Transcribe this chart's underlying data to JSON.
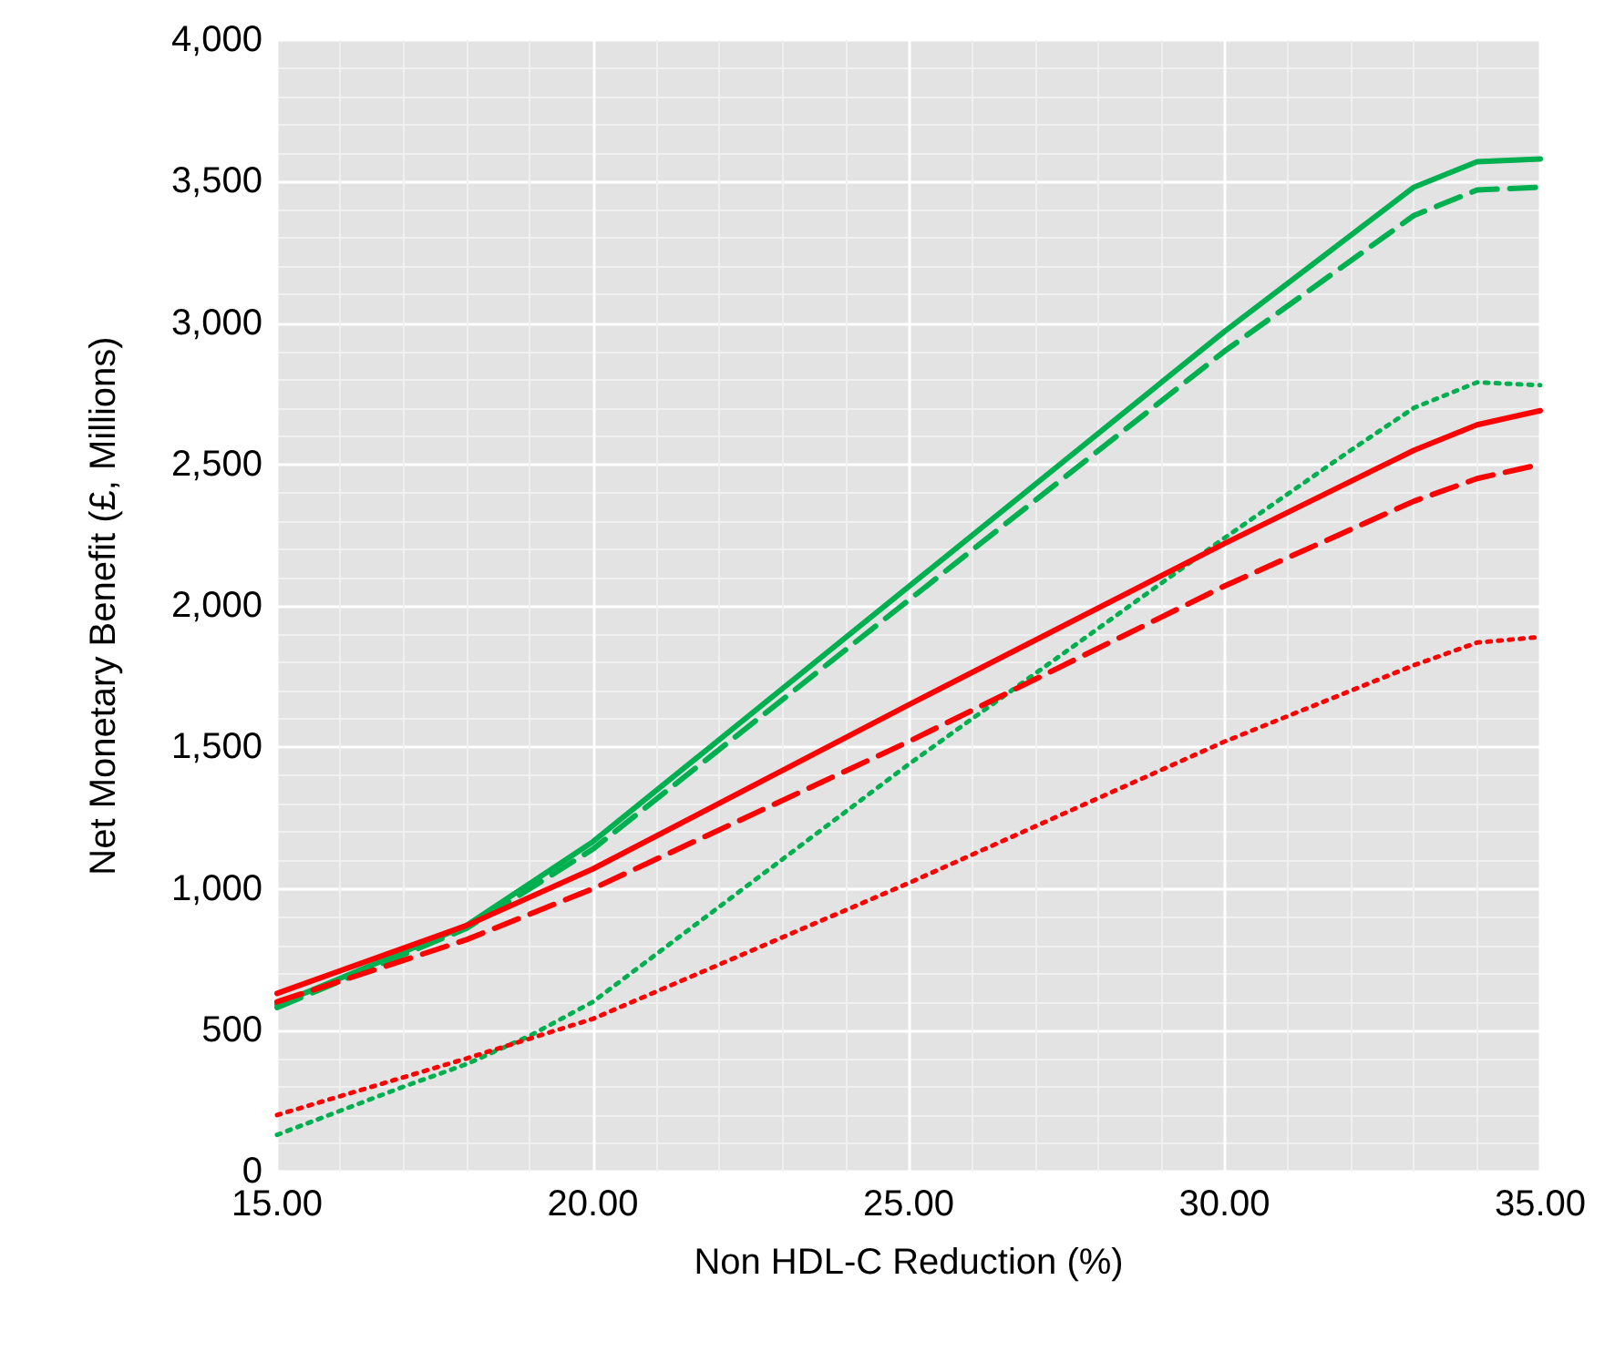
{
  "chart_data": {
    "type": "line",
    "xlabel": "Non HDL-C Reduction (%)",
    "ylabel": "Net Monetary Benefit (£, Millions)",
    "xlim": [
      15,
      35
    ],
    "xticks": [
      {
        "value": 15,
        "label": "15.00"
      },
      {
        "value": 20,
        "label": "20.00"
      },
      {
        "value": 25,
        "label": "25.00"
      },
      {
        "value": 30,
        "label": "30.00"
      },
      {
        "value": 35,
        "label": "35.00"
      }
    ],
    "ylim": [
      0,
      4000
    ],
    "yticks": [
      0,
      500,
      {
        "value": 1000,
        "label": "1,000"
      },
      {
        "value": 1500,
        "label": "1,500"
      },
      {
        "value": 2000,
        "label": "2,000"
      },
      {
        "value": 2500,
        "label": "2,500"
      },
      {
        "value": 3000,
        "label": "3,000"
      },
      {
        "value": 3500,
        "label": "3,500"
      },
      {
        "value": 4000,
        "label": "4,000"
      }
    ],
    "grid": true,
    "marker": "none",
    "x": [
      15,
      18,
      20,
      25,
      30,
      33,
      34,
      35
    ],
    "series": [
      {
        "color": "#00b050",
        "line_style": "solid",
        "values": [
          590,
          870,
          1166,
          2068,
          2970,
          3480,
          3570,
          3580
        ]
      },
      {
        "color": "#00b050",
        "line_style": "dashed",
        "values": [
          580,
          860,
          1140,
          2020,
          2900,
          3380,
          3470,
          3480
        ]
      },
      {
        "color": "#00b050",
        "line_style": "dotted",
        "x": [
          15,
          17,
          18,
          19,
          20,
          25,
          30,
          32,
          33,
          34,
          35
        ],
        "values": [
          130,
          300,
          380,
          480,
          600,
          1440,
          2240,
          2550,
          2700,
          2790,
          2780
        ]
      },
      {
        "color": "#ff0000",
        "line_style": "solid",
        "values": [
          630,
          870,
          1070,
          1650,
          2220,
          2550,
          2640,
          2690
        ]
      },
      {
        "color": "#ff0000",
        "line_style": "dashed",
        "values": [
          600,
          820,
          1000,
          1520,
          2070,
          2370,
          2450,
          2500
        ]
      },
      {
        "color": "#ff0000",
        "line_style": "dotted",
        "values": [
          200,
          400,
          540,
          1020,
          1520,
          1790,
          1870,
          1890
        ]
      }
    ]
  }
}
